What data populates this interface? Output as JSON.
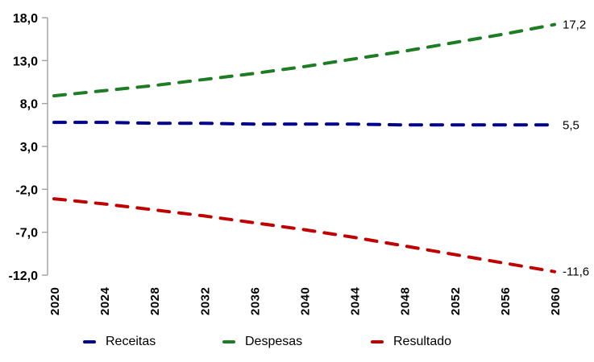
{
  "chart_data": {
    "type": "line",
    "title": "",
    "xlabel": "",
    "ylabel": "",
    "categories": [
      "2020",
      "2024",
      "2028",
      "2032",
      "2036",
      "2040",
      "2044",
      "2048",
      "2052",
      "2056",
      "2060"
    ],
    "series": [
      {
        "name": "Receitas",
        "color": "#00008B",
        "line_style": "dashed",
        "values": [
          5.8,
          5.8,
          5.7,
          5.7,
          5.6,
          5.6,
          5.6,
          5.5,
          5.5,
          5.5,
          5.5
        ],
        "end_label": "5,5"
      },
      {
        "name": "Despesas",
        "color": "#1E7C24",
        "line_style": "dashed",
        "values": [
          8.9,
          9.5,
          10.1,
          10.8,
          11.5,
          12.3,
          13.2,
          14.1,
          15.1,
          16.1,
          17.2
        ],
        "end_label": "17,2"
      },
      {
        "name": "Resultado",
        "color": "#C00000",
        "line_style": "dashed",
        "values": [
          -3.1,
          -3.7,
          -4.4,
          -5.1,
          -5.9,
          -6.7,
          -7.6,
          -8.6,
          -9.6,
          -10.6,
          -11.6
        ],
        "end_label": "-11,6"
      }
    ],
    "ylim": [
      -12,
      18
    ],
    "yticks": [
      18,
      13,
      8,
      3,
      -2,
      -7,
      -12
    ],
    "ytick_labels": [
      "18,0",
      "13,0",
      "8,0",
      "3,0",
      "-2,0",
      "-7,0",
      "-12,0"
    ],
    "grid": false,
    "legend_position": "bottom",
    "axis_color": "#A6A6A6",
    "text_color": "#000000"
  },
  "legend": {
    "items": [
      {
        "label": "Receitas",
        "color": "#00008B"
      },
      {
        "label": "Despesas",
        "color": "#1E7C24"
      },
      {
        "label": "Resultado",
        "color": "#C00000"
      }
    ]
  }
}
